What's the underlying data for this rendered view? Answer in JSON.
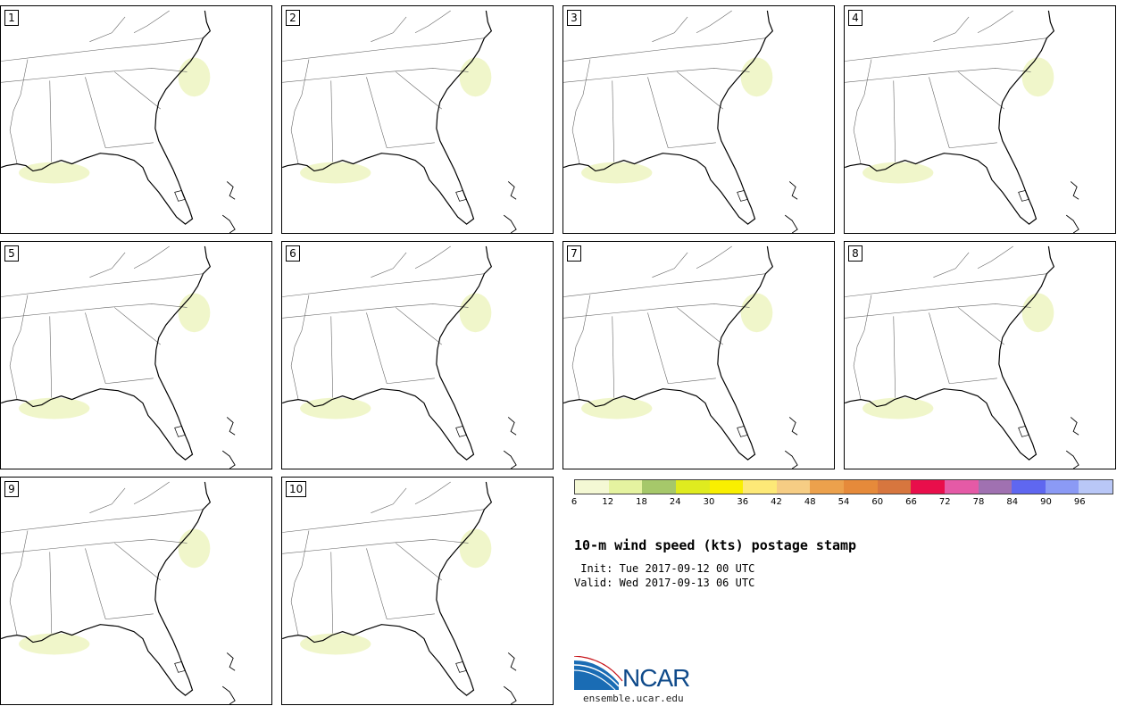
{
  "panels": [
    {
      "label": "1"
    },
    {
      "label": "2"
    },
    {
      "label": "3"
    },
    {
      "label": "4"
    },
    {
      "label": "5"
    },
    {
      "label": "6"
    },
    {
      "label": "7"
    },
    {
      "label": "8"
    },
    {
      "label": "9"
    },
    {
      "label": "10"
    }
  ],
  "legend": {
    "colors": [
      "#f4f8d4",
      "#e5f3a0",
      "#a6c86a",
      "#dfeb1f",
      "#f9ef00",
      "#fde977",
      "#f6cd84",
      "#eca14c",
      "#e68a3a",
      "#d7763e",
      "#e90e4b",
      "#e55aa6",
      "#a071b1",
      "#5f67f0",
      "#8b9af5",
      "#b9c7f7"
    ],
    "ticks": [
      "6",
      "12",
      "18",
      "24",
      "30",
      "36",
      "42",
      "48",
      "54",
      "60",
      "66",
      "72",
      "78",
      "84",
      "90",
      "96"
    ]
  },
  "title": "10-m wind speed (kts) postage stamp",
  "init": " Init: Tue 2017-09-12 00 UTC",
  "valid": "Valid: Wed 2017-09-13 06 UTC",
  "logo": {
    "name": "NCAR",
    "url": "ensemble.ucar.edu"
  }
}
